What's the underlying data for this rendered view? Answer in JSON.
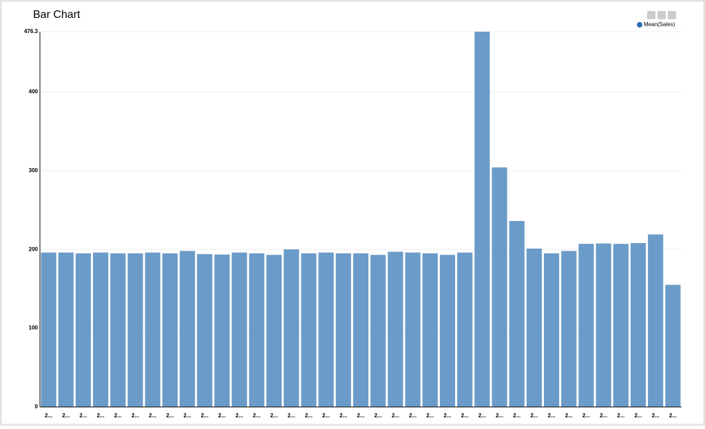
{
  "chart_data": {
    "type": "bar",
    "title": "Bar Chart",
    "legend": "Mean(Sales)",
    "color": "#6b9bc8",
    "legend_color": "#2c6fad",
    "categories": [
      "2...",
      "2...",
      "2...",
      "2...",
      "2...",
      "2...",
      "2...",
      "2...",
      "2...",
      "2...",
      "2...",
      "2...",
      "2...",
      "2...",
      "2...",
      "2...",
      "2...",
      "2...",
      "2...",
      "2...",
      "2...",
      "2...",
      "2...",
      "2...",
      "2...",
      "2...",
      "2...",
      "2...",
      "2...",
      "2...",
      "2...",
      "2...",
      "2...",
      "2...",
      "2...",
      "2...",
      "2..."
    ],
    "values": [
      196,
      196,
      195,
      196,
      195,
      195,
      196,
      195,
      198,
      194,
      193.5,
      196,
      195,
      193,
      200,
      195,
      196,
      195,
      195,
      193,
      197,
      196,
      195,
      193,
      196,
      476.3,
      304,
      236,
      201,
      195,
      198,
      207,
      207.5,
      207,
      208,
      219,
      155
    ],
    "ylim": [
      0,
      476.3
    ],
    "yticks": [
      0,
      100,
      200,
      300,
      400,
      476.3
    ],
    "grid": true
  }
}
